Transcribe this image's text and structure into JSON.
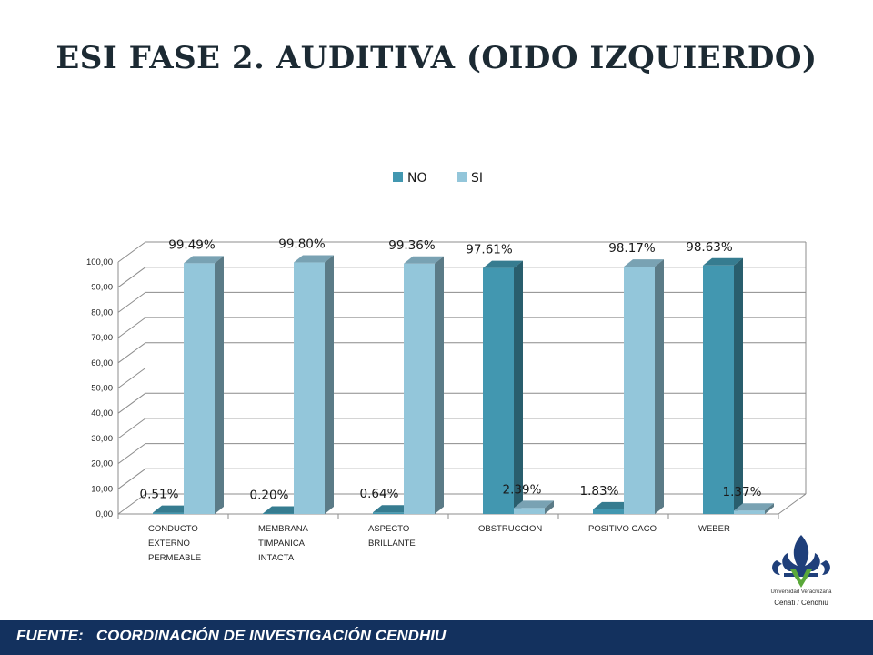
{
  "title": "ESI FASE 2. AUDITIVA (OIDO IZQUIERDO)",
  "footer": "FUENTE:   COORDINACIÓN DE INVESTIGACIÓN CENDHIU",
  "logo": {
    "line1": "Universidad Veracruzana",
    "line2": "Cenati / Cendhiu"
  },
  "colors": {
    "no": "#4297b0",
    "si": "#93c6da",
    "footer_bg": "#13315e"
  },
  "chart_data": {
    "type": "bar",
    "categories": [
      [
        "CONDUCTO",
        "EXTERNO",
        "PERMEABLE"
      ],
      [
        "MEMBRANA",
        "TIMPANICA",
        "INTACTA"
      ],
      [
        "ASPECTO",
        "BRILLANTE"
      ],
      [
        "OBSTRUCCION"
      ],
      [
        "POSITIVO CACO"
      ],
      [
        "WEBER"
      ]
    ],
    "series": [
      {
        "name": "NO",
        "values": [
          0.51,
          0.2,
          0.64,
          97.61,
          1.83,
          98.63
        ],
        "labels": [
          "0.51%",
          "0.20%",
          "0.64%",
          "97.61%",
          "1.83%",
          "98.63%"
        ]
      },
      {
        "name": "SI",
        "values": [
          99.49,
          99.8,
          99.36,
          2.39,
          98.17,
          1.37
        ],
        "labels": [
          "99.49%",
          "99.80%",
          "99.36%",
          "2.39%",
          "98.17%",
          "1.37%"
        ]
      }
    ],
    "ylim": [
      0,
      100
    ],
    "yticks": [
      "0,00",
      "10,00",
      "20,00",
      "30,00",
      "40,00",
      "50,00",
      "60,00",
      "70,00",
      "80,00",
      "90,00",
      "100,00"
    ],
    "legend": "top",
    "grid": true
  }
}
